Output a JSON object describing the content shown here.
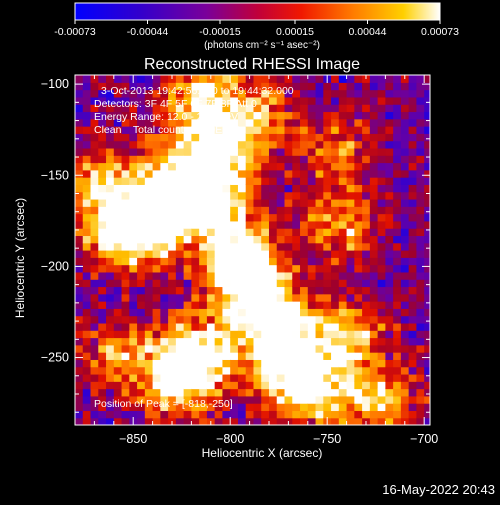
{
  "colorbar": {
    "tick_labels": [
      "-0.00073",
      "-0.00044",
      "-0.00015",
      "0.00015",
      "0.00044",
      "0.00073"
    ],
    "tick_values": [
      -0.00073,
      -0.00044,
      -0.00015,
      0.00015,
      0.00044,
      0.00073
    ],
    "range": [
      -0.00073,
      0.00073
    ],
    "unit_label": "(photons cm⁻² s⁻¹ asec⁻²)"
  },
  "plot": {
    "title": "Reconstructed RHESSI Image",
    "time_range": "3-Oct-2013 19:42:56.000 to 19:44:32.000",
    "detectors": "Detectors: 3F 4F 5F 6F 7F 8F  Att 0",
    "energy_range": "Energy Range: 12.0 - 25.0 keV",
    "algorithm": "Clean    Total counts: 3.50E+03",
    "peak_text": "Position of Peak = [-818,-250]",
    "footer_date": "16-May-2022 20:43"
  },
  "chart_data": {
    "type": "heatmap",
    "title": "Reconstructed RHESSI Image",
    "xlabel": "Heliocentric X (arcsec)",
    "ylabel": "Heliocentric Y (arcsec)",
    "xlim": [
      -880,
      -697
    ],
    "ylim": [
      -287,
      -95
    ],
    "x_ticks": [
      -850,
      -800,
      -750,
      -700
    ],
    "y_ticks": [
      -100,
      -150,
      -200,
      -250
    ],
    "x_tick_labels": [
      "−850",
      "−800",
      "−750",
      "−700"
    ],
    "y_tick_labels": [
      "−100",
      "−150",
      "−200",
      "−250"
    ],
    "peak_position": [
      -818,
      -250
    ],
    "colormap": [
      "#0000ff",
      "#3b00c8",
      "#6b00a0",
      "#a0002a",
      "#e01000",
      "#ff7000",
      "#ffc000",
      "#ffffff"
    ],
    "pixel_size_arcsec": 4,
    "bright_ridge": [
      {
        "x": -868,
        "y": -160,
        "intensity": 0.75
      },
      {
        "x": -856,
        "y": -185,
        "intensity": 1.0
      },
      {
        "x": -840,
        "y": -175,
        "intensity": 0.9
      },
      {
        "x": -828,
        "y": -150,
        "intensity": 0.85
      },
      {
        "x": -818,
        "y": -110,
        "intensity": 0.8
      },
      {
        "x": -805,
        "y": -135,
        "intensity": 0.85
      },
      {
        "x": -810,
        "y": -165,
        "intensity": 1.0
      },
      {
        "x": -798,
        "y": -195,
        "intensity": 0.9
      },
      {
        "x": -790,
        "y": -215,
        "intensity": 0.95
      },
      {
        "x": -780,
        "y": -235,
        "intensity": 0.9
      },
      {
        "x": -770,
        "y": -255,
        "intensity": 0.85
      },
      {
        "x": -760,
        "y": -270,
        "intensity": 0.8
      },
      {
        "x": -818,
        "y": -250,
        "intensity": 1.0
      },
      {
        "x": -830,
        "y": -265,
        "intensity": 0.85
      },
      {
        "x": -745,
        "y": -180,
        "intensity": 0.65
      },
      {
        "x": -748,
        "y": -140,
        "intensity": 0.6
      },
      {
        "x": -740,
        "y": -240,
        "intensity": 0.7
      },
      {
        "x": -725,
        "y": -275,
        "intensity": 0.75
      },
      {
        "x": -860,
        "y": -250,
        "intensity": 0.6
      },
      {
        "x": -785,
        "y": -115,
        "intensity": 0.55
      }
    ]
  }
}
